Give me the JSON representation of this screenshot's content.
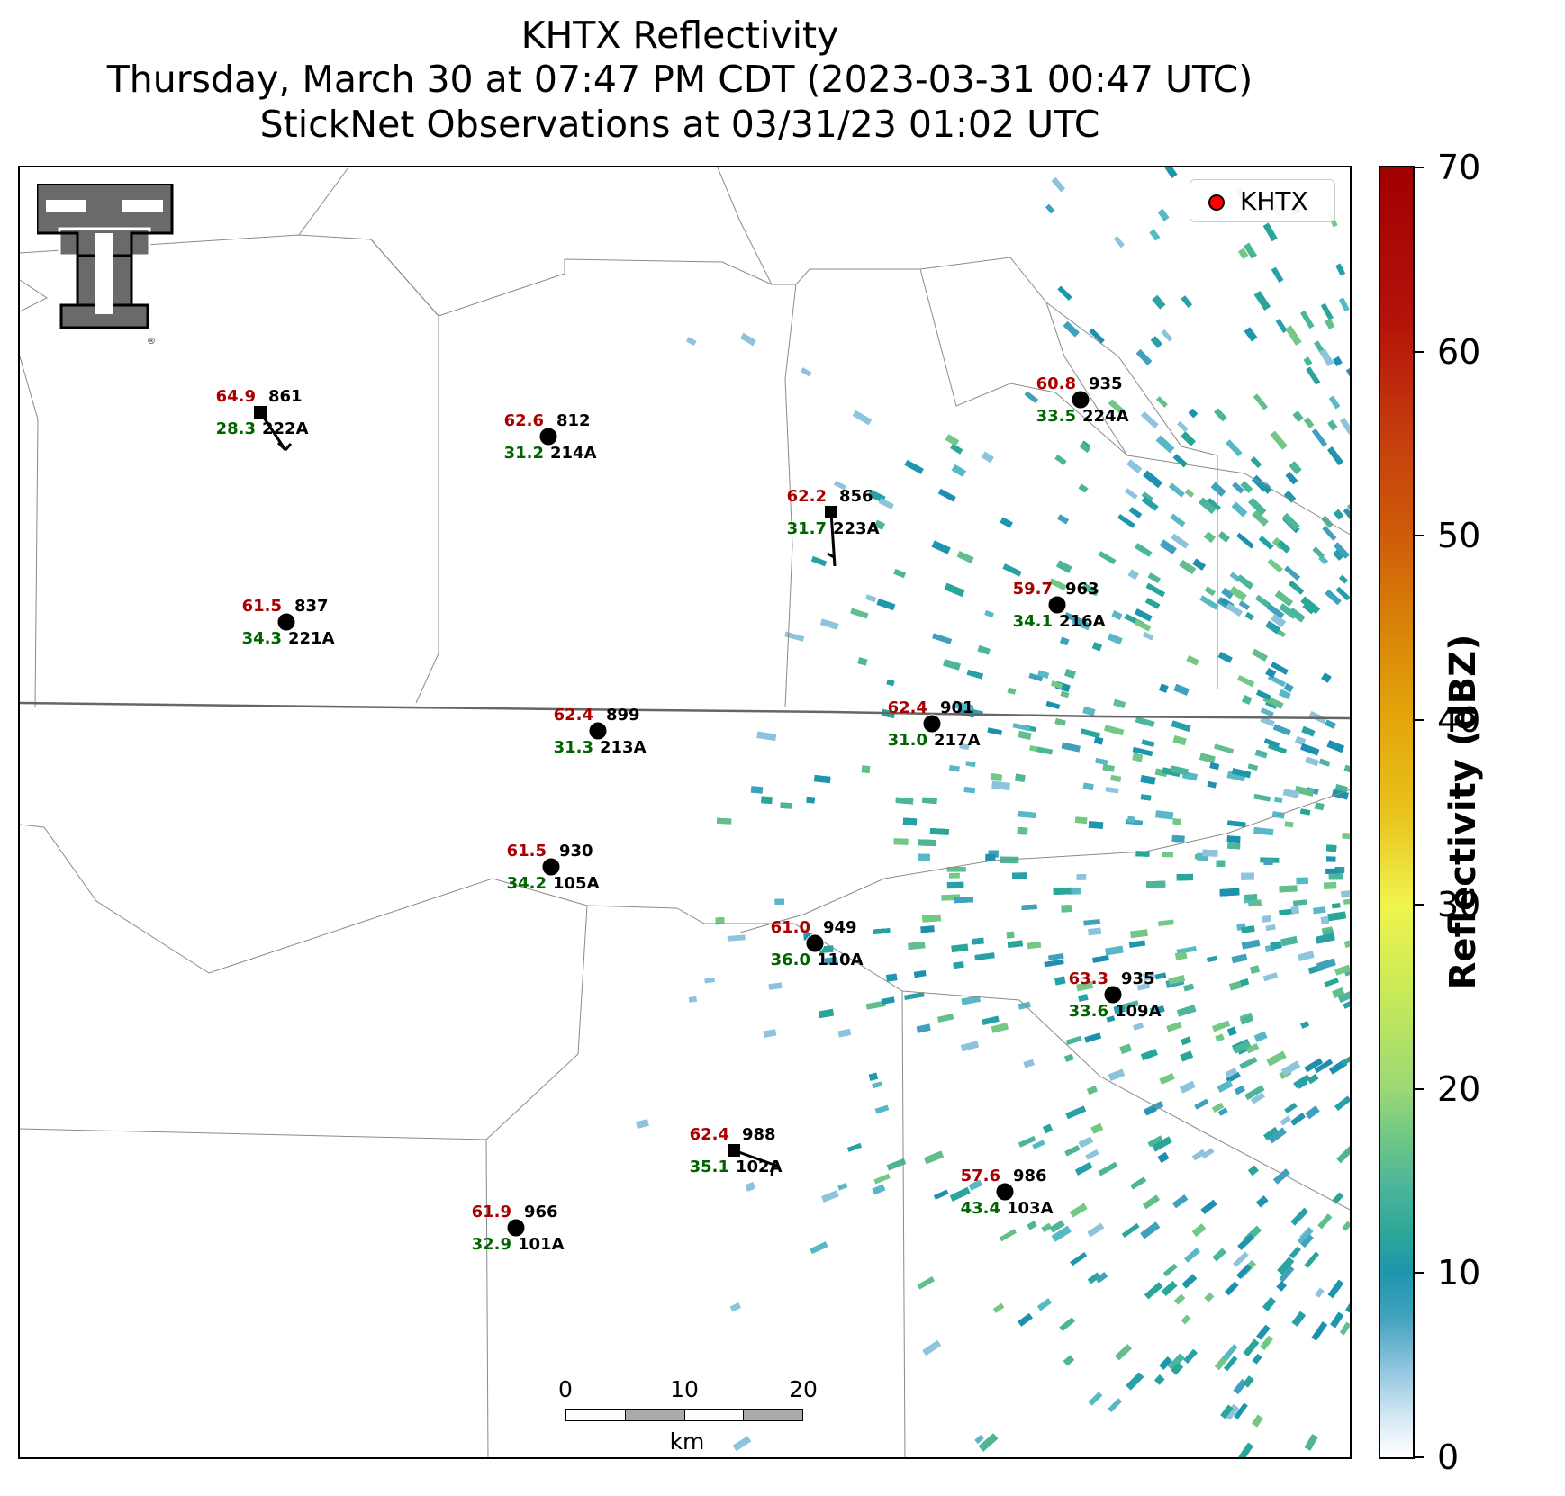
{
  "titles": {
    "line1": "KHTX Reflectivity",
    "line2": "Thursday, March 30 at 07:47 PM CDT (2023-03-31 00:47 UTC)",
    "line3": "StickNet Observations at 03/31/23 01:02 UTC"
  },
  "legend": {
    "label": "KHTX",
    "marker_color": "#ff0000"
  },
  "colorbar": {
    "label": "Reflectivity (dBZ)",
    "ticks": [
      0,
      10,
      20,
      30,
      40,
      50,
      60,
      70
    ],
    "range": [
      0,
      70
    ]
  },
  "colors": {
    "temperature": "#aa0000",
    "dewpoint": "#006400",
    "station_text": "#000000"
  },
  "scale_bar": {
    "ticks": [
      "0",
      "10",
      "20"
    ],
    "unit": "km"
  },
  "stations": [
    {
      "id": "222A",
      "temp": "64.9",
      "dew": "28.3",
      "pres": "861",
      "marker": "square"
    },
    {
      "id": "214A",
      "temp": "62.6",
      "dew": "31.2",
      "pres": "812",
      "marker": "circle"
    },
    {
      "id": "223A",
      "temp": "62.2",
      "dew": "31.7",
      "pres": "856",
      "marker": "square"
    },
    {
      "id": "224A",
      "temp": "60.8",
      "dew": "33.5",
      "pres": "935",
      "marker": "circle"
    },
    {
      "id": "221A",
      "temp": "61.5",
      "dew": "34.3",
      "pres": "837",
      "marker": "circle"
    },
    {
      "id": "216A",
      "temp": "59.7",
      "dew": "34.1",
      "pres": "963",
      "marker": "circle"
    },
    {
      "id": "213A",
      "temp": "62.4",
      "dew": "31.3",
      "pres": "899",
      "marker": "circle"
    },
    {
      "id": "217A",
      "temp": "62.4",
      "dew": "31.0",
      "pres": "901",
      "marker": "circle"
    },
    {
      "id": "105A",
      "temp": "61.5",
      "dew": "34.2",
      "pres": "930",
      "marker": "circle"
    },
    {
      "id": "110A",
      "temp": "61.0",
      "dew": "36.0",
      "pres": "949",
      "marker": "circle"
    },
    {
      "id": "109A",
      "temp": "63.3",
      "dew": "33.6",
      "pres": "935",
      "marker": "circle"
    },
    {
      "id": "102A",
      "temp": "62.4",
      "dew": "35.1",
      "pres": "988",
      "marker": "square"
    },
    {
      "id": "103A",
      "temp": "57.6",
      "dew": "43.4",
      "pres": "986",
      "marker": "circle"
    },
    {
      "id": "101A",
      "temp": "61.9",
      "dew": "32.9",
      "pres": "966",
      "marker": "circle"
    }
  ]
}
